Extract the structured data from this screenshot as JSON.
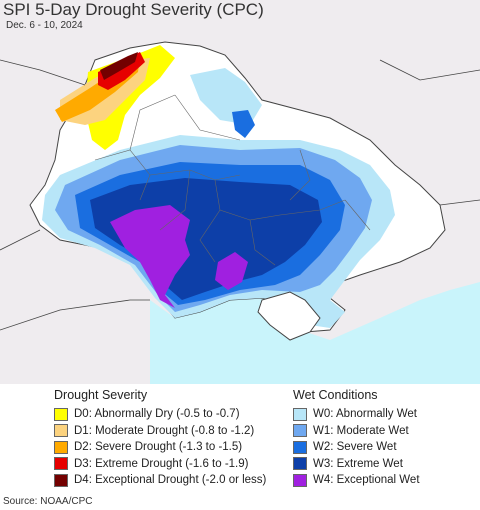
{
  "title": "SPI 5-Day Drought Severity (CPC)",
  "subtitle": "Dec. 6 - 10, 2024",
  "legend": {
    "drought_heading": "Drought Severity",
    "wet_heading": "Wet Conditions",
    "drought": [
      {
        "label": "D0: Abnormally Dry (-0.5 to -0.7)",
        "color": "#ffff00"
      },
      {
        "label": "D1: Moderate Drought (-0.8 to -1.2)",
        "color": "#fcd37f"
      },
      {
        "label": "D2: Severe Drought (-1.3 to -1.5)",
        "color": "#ffaa00"
      },
      {
        "label": "D3: Extreme Drought (-1.6 to -1.9)",
        "color": "#e60000"
      },
      {
        "label": "D4: Exceptional Drought (-2.0 or less)",
        "color": "#730000"
      }
    ],
    "wet": [
      {
        "label": "W0: Abnormally Wet",
        "color": "#b8e6f8"
      },
      {
        "label": "W1: Moderate Wet",
        "color": "#6fa8f0"
      },
      {
        "label": "W2: Severe Wet",
        "color": "#1a6ee0"
      },
      {
        "label": "W3: Extreme Wet",
        "color": "#0d3fa8"
      },
      {
        "label": "W4: Exceptional Wet",
        "color": "#a020e0"
      }
    ]
  },
  "source": "Source: NOAA/CPC"
}
